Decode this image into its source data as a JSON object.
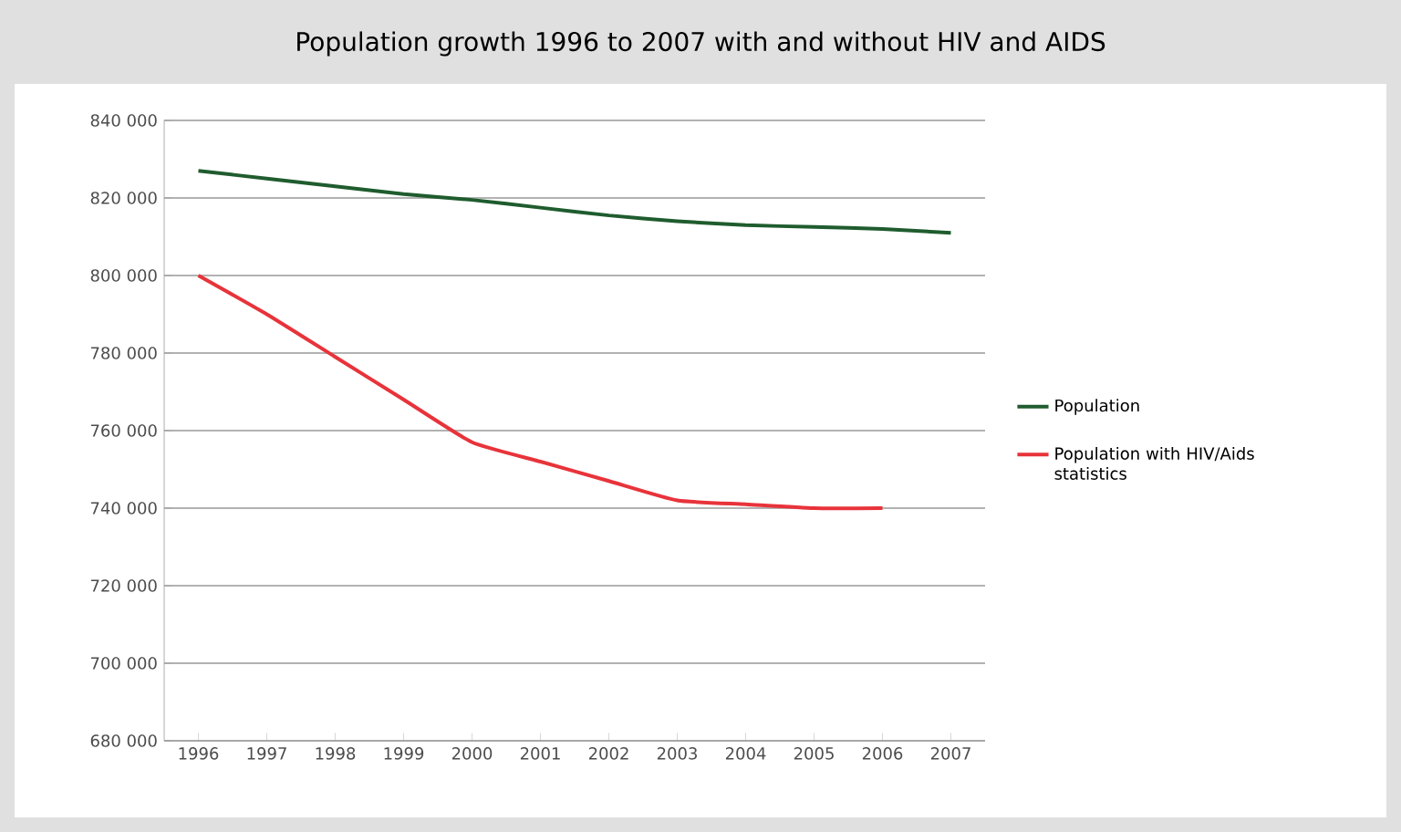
{
  "chart_data": {
    "type": "line",
    "title": "Population growth 1996 to 2007 with and without HIV and AIDS",
    "categories": [
      "1996",
      "1997",
      "1998",
      "1999",
      "2000",
      "2001",
      "2002",
      "2003",
      "2004",
      "2005",
      "2006",
      "2007"
    ],
    "series": [
      {
        "name": "Population",
        "color": "#1f5c2e",
        "values": [
          827000,
          825000,
          823000,
          821000,
          819500,
          817500,
          815500,
          814000,
          813000,
          812500,
          812000,
          811000
        ]
      },
      {
        "name": "Population with HIV/Aids statistics",
        "color": "#e8333a",
        "values": [
          800000,
          790000,
          779000,
          768000,
          757000,
          752000,
          747000,
          742000,
          741000,
          740000,
          740000,
          null
        ]
      }
    ],
    "ylim": [
      680000,
      840000
    ],
    "yticks": [
      {
        "value": 680000,
        "label": "680 000"
      },
      {
        "value": 700000,
        "label": "700 000"
      },
      {
        "value": 720000,
        "label": "720 000"
      },
      {
        "value": 740000,
        "label": "740 000"
      },
      {
        "value": 760000,
        "label": "760 000"
      },
      {
        "value": 780000,
        "label": "780 000"
      },
      {
        "value": 800000,
        "label": "800 000"
      },
      {
        "value": 820000,
        "label": "820 000"
      },
      {
        "value": 840000,
        "label": "840 000"
      }
    ],
    "grid": "y",
    "legend": "right",
    "marker": "none",
    "line_style": "solid"
  }
}
